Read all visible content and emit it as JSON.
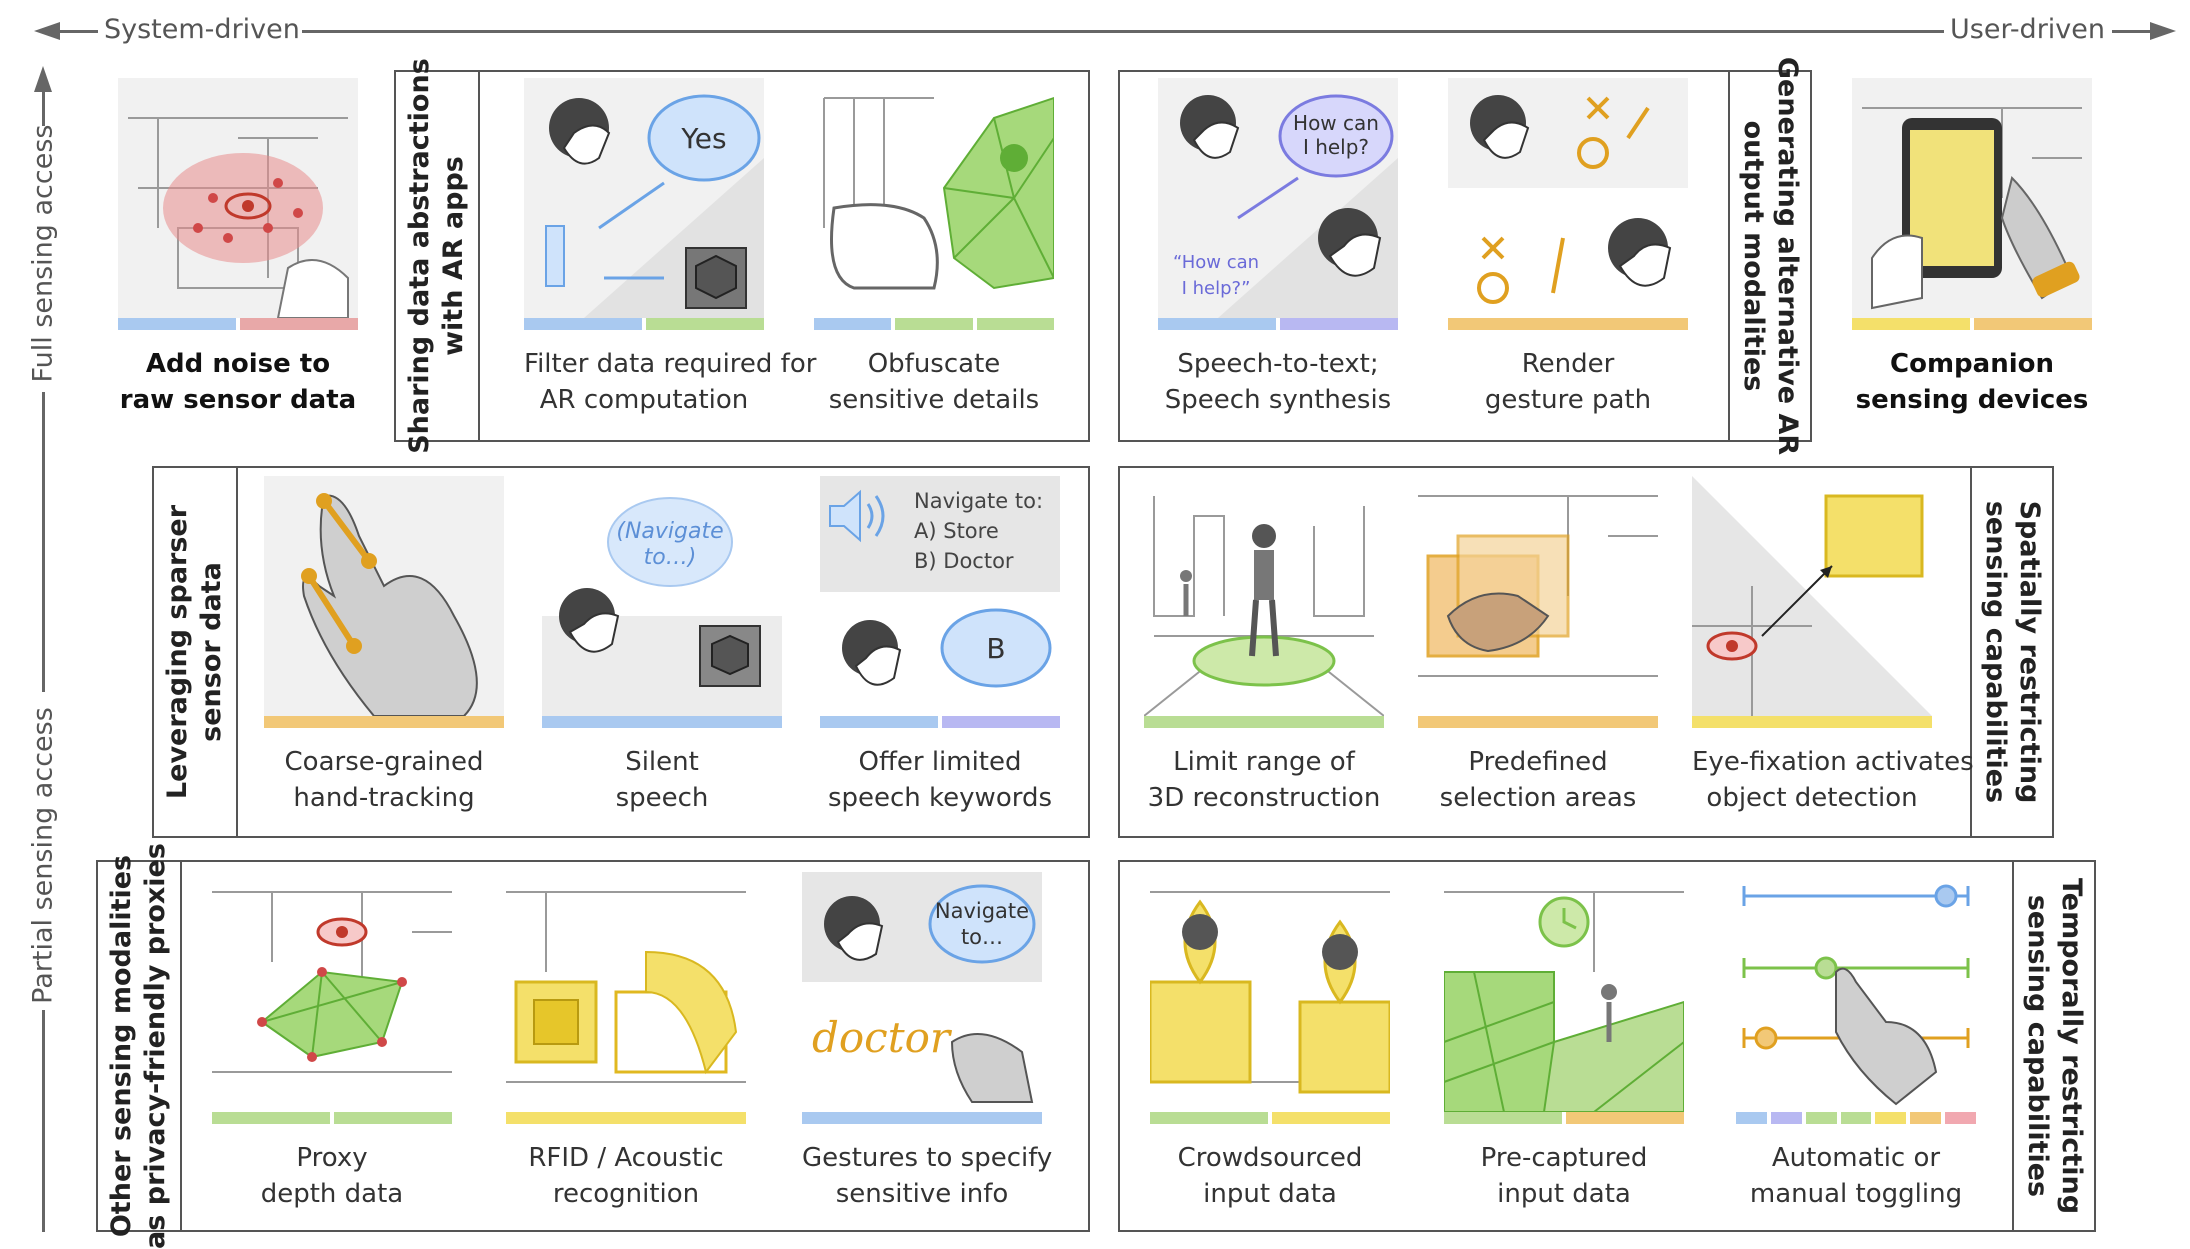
{
  "axes": {
    "left_label": "System-driven",
    "right_label": "User-driven",
    "top_label": "Full sensing access",
    "bottom_label": "Partial sensing access"
  },
  "colors": {
    "blue": "#a9c9f0",
    "red": "#e8a8a8",
    "green": "#b9dd94",
    "orange": "#f2c877",
    "yellow": "#f4e06a",
    "purple": "#b8b8f2",
    "pink": "#f1a8b0",
    "teal": "#a8e0d6"
  },
  "row1": {
    "standalone_left": {
      "caption": [
        "Add noise to",
        "raw sensor data"
      ],
      "bars": [
        "blue",
        "red"
      ]
    },
    "group_a": {
      "title": [
        "Sharing data abstractions",
        "with AR apps"
      ],
      "items": [
        {
          "caption": [
            "Filter data required for",
            "AR computation"
          ],
          "bubble": "Yes",
          "bars": [
            "blue",
            "green"
          ]
        },
        {
          "caption": [
            "Obfuscate",
            "sensitive details"
          ],
          "bars": [
            "blue",
            "green",
            "green"
          ]
        }
      ]
    },
    "group_b": {
      "title": [
        "Generating alternative AR",
        "output modalities"
      ],
      "items": [
        {
          "caption": [
            "Speech-to-text;",
            "Speech synthesis"
          ],
          "bubble": [
            "How can",
            "I help?"
          ],
          "quote": [
            "“How can",
            "I help?”"
          ],
          "bars": [
            "blue",
            "purple"
          ]
        },
        {
          "caption": [
            "Render",
            "gesture path"
          ],
          "bars": [
            "orange"
          ]
        }
      ]
    },
    "standalone_right": {
      "caption": [
        "Companion",
        "sensing devices"
      ],
      "bars": [
        "yellow",
        "orange"
      ]
    }
  },
  "row2": {
    "group_c": {
      "title": [
        "Leveraging sparser",
        "sensor data"
      ],
      "items": [
        {
          "caption": [
            "Coarse-grained",
            "hand-tracking"
          ],
          "bars": [
            "orange"
          ]
        },
        {
          "caption": [
            "Silent",
            "speech"
          ],
          "bubble": [
            "(Navigate",
            "to…)"
          ],
          "bars": [
            "blue"
          ]
        },
        {
          "caption": [
            "Offer limited",
            "speech keywords"
          ],
          "menu": [
            "Navigate to:",
            "A) Store",
            "B) Doctor"
          ],
          "bubble": "B",
          "bars": [
            "blue",
            "purple"
          ]
        }
      ]
    },
    "group_d": {
      "title": [
        "Spatially restricting",
        "sensing capabilities"
      ],
      "items": [
        {
          "caption": [
            "Limit range of",
            "3D reconstruction"
          ],
          "bars": [
            "green"
          ]
        },
        {
          "caption": [
            "Predefined",
            "selection areas"
          ],
          "bars": [
            "orange"
          ]
        },
        {
          "caption": [
            "Eye-fixation activates",
            "object detection"
          ],
          "bars": [
            "yellow"
          ]
        }
      ]
    }
  },
  "row3": {
    "group_e": {
      "title": [
        "Other sensing modalities",
        "as privacy-friendly proxies"
      ],
      "items": [
        {
          "caption": [
            "Proxy",
            "depth data"
          ],
          "bars": [
            "green",
            "green"
          ]
        },
        {
          "caption": [
            "RFID / Acoustic",
            "recognition"
          ],
          "bars": [
            "yellow"
          ]
        },
        {
          "caption": [
            "Gestures to specify",
            "sensitive info"
          ],
          "bubble": [
            "Navigate",
            "to…"
          ],
          "handwriting": "doctor",
          "bars": [
            "blue"
          ]
        }
      ]
    },
    "group_f": {
      "title": [
        "Temporally restricting",
        "sensing capabilities"
      ],
      "items": [
        {
          "caption": [
            "Crowdsourced",
            "input data"
          ],
          "bars": [
            "green",
            "yellow"
          ]
        },
        {
          "caption": [
            "Pre-captured",
            "input data"
          ],
          "bars": [
            "green",
            "orange"
          ]
        },
        {
          "caption": [
            "Automatic or",
            "manual toggling"
          ],
          "bars": [
            "blue",
            "purple",
            "green",
            "green",
            "yellow",
            "orange",
            "pink"
          ]
        }
      ]
    }
  }
}
